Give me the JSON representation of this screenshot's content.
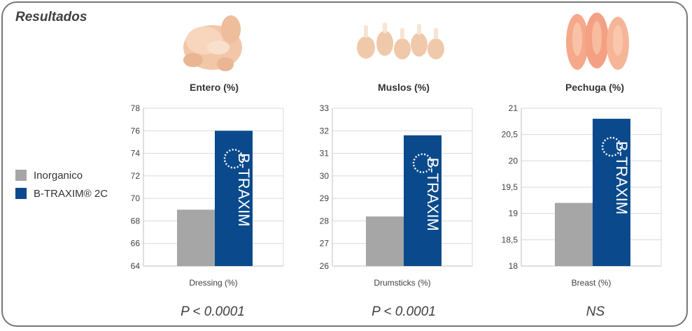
{
  "header": {
    "title": "Resultados"
  },
  "legend": {
    "items": [
      {
        "label": "Inorganico",
        "color": "#a6a6a6"
      },
      {
        "label": "B-TRAXIM® 2C",
        "color": "#0a4a8c"
      }
    ]
  },
  "colors": {
    "inorganic": "#a6a6a6",
    "btraxim": "#0a4a8c",
    "grid": "#d9d9d9",
    "axis": "#bfbfbf"
  },
  "icons": [
    "whole-chicken-icon",
    "drumsticks-icon",
    "breast-fillets-icon",
    "btraxim-logo-icon"
  ],
  "panels": [
    {
      "title": "Entero (%)",
      "xlabel": "Dressing (%)",
      "pvalue": "P < 0.0001",
      "logo_text": "B-TRAXIM"
    },
    {
      "title": "Muslos (%)",
      "xlabel": "Drumsticks (%)",
      "pvalue": "P < 0.0001",
      "logo_text": "B-TRAXIM"
    },
    {
      "title": "Pechuga (%)",
      "xlabel": "Breast (%)",
      "pvalue": "NS",
      "logo_text": "B-TRAXIM"
    }
  ],
  "chart_data": [
    {
      "type": "bar",
      "title": "Entero (%)",
      "xlabel": "Dressing (%)",
      "categories": [
        "Dressing (%)"
      ],
      "series": [
        {
          "name": "Inorganico",
          "values": [
            69
          ]
        },
        {
          "name": "B-TRAXIM® 2C",
          "values": [
            76
          ]
        }
      ],
      "ylim": [
        64,
        78
      ],
      "yticks": [
        "64",
        "66",
        "68",
        "70",
        "72",
        "74",
        "76",
        "78"
      ],
      "ytick_values": [
        64,
        66,
        68,
        70,
        72,
        74,
        76,
        78
      ],
      "grid": true
    },
    {
      "type": "bar",
      "title": "Muslos (%)",
      "xlabel": "Drumsticks (%)",
      "categories": [
        "Drumsticks (%)"
      ],
      "series": [
        {
          "name": "Inorganico",
          "values": [
            28.2
          ]
        },
        {
          "name": "B-TRAXIM® 2C",
          "values": [
            31.8
          ]
        }
      ],
      "ylim": [
        26,
        33
      ],
      "yticks": [
        "26",
        "27",
        "28",
        "29",
        "30",
        "31",
        "32",
        "33"
      ],
      "ytick_values": [
        26,
        27,
        28,
        29,
        30,
        31,
        32,
        33
      ],
      "grid": true
    },
    {
      "type": "bar",
      "title": "Pechuga (%)",
      "xlabel": "Breast (%)",
      "categories": [
        "Breast (%)"
      ],
      "series": [
        {
          "name": "Inorganico",
          "values": [
            19.2
          ]
        },
        {
          "name": "B-TRAXIM® 2C",
          "values": [
            20.8
          ]
        }
      ],
      "ylim": [
        18,
        21
      ],
      "yticks": [
        "18",
        "18,5",
        "19",
        "19,5",
        "20",
        "20,5",
        "21"
      ],
      "ytick_values": [
        18,
        18.5,
        19,
        19.5,
        20,
        20.5,
        21
      ],
      "grid": true
    }
  ]
}
